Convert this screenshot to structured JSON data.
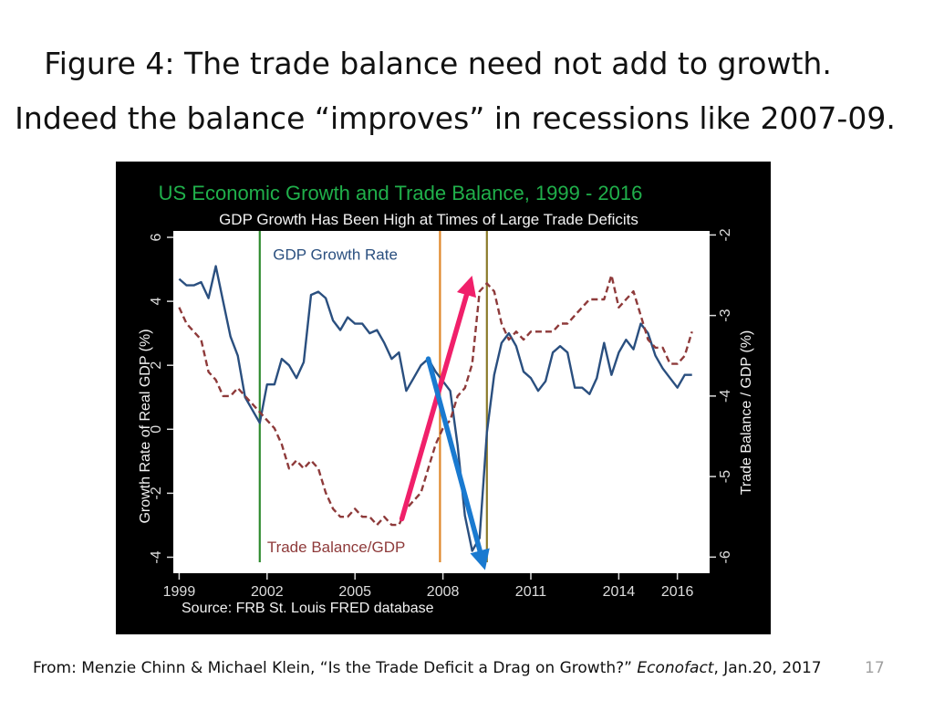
{
  "slide": {
    "title_line1": "Figure 4: The trade balance need not add to growth.",
    "title_line2": "Indeed the balance “improves” in recessions like 2007-09.",
    "citation_prefix": "From: Menzie Chinn & Michael Klein, “Is the Trade Deficit a Drag on Growth?” ",
    "citation_journal": "Econofact",
    "citation_suffix": ", Jan.20, 2017",
    "slide_number": "17"
  },
  "chart_data": {
    "type": "line",
    "title": "US Economic Growth and Trade Balance, 1999 - 2016",
    "subtitle": "GDP Growth Has Been High at Times of Large Trade Deficits",
    "source": "Source: FRB St. Louis FRED database",
    "xlabel": "",
    "ylabel_left": "Growth Rate of Real GDP (%)",
    "ylabel_right": "Trade Balance / GDP (%)",
    "x_ticks": [
      "1999",
      "2002",
      "2005",
      "2008",
      "2011",
      "2014",
      "2016"
    ],
    "y_left_ticks": [
      "-4",
      "-2",
      "0",
      "2",
      "4",
      "6"
    ],
    "y_right_ticks": [
      "-6",
      "-5",
      "-4",
      "-3",
      "-2"
    ],
    "xlim": [
      1998.8,
      2017.1
    ],
    "ylim_left": [
      -4.5,
      6.2
    ],
    "ylim_right": [
      -6.2,
      -1.95
    ],
    "colors": {
      "title": "#20b04b",
      "gdp": "#2a4f7f",
      "trade": "#8e3a3a",
      "recession_line_2001": "#2e8b2e",
      "recession_line_2008": "#e0882a",
      "recession_line_2009": "#8a7a2a",
      "arrow_up": "#f0206a",
      "arrow_down": "#1a7ad0",
      "plot_bg": "#ffffff",
      "frame_bg": "#000000",
      "axis_text": "#dddddd"
    },
    "series": [
      {
        "name": "GDP Growth Rate",
        "axis": "left",
        "style": "solid",
        "x": [
          1999.0,
          1999.25,
          1999.5,
          1999.75,
          2000.0,
          2000.25,
          2000.5,
          2000.75,
          2001.0,
          2001.25,
          2001.5,
          2001.75,
          2002.0,
          2002.25,
          2002.5,
          2002.75,
          2003.0,
          2003.25,
          2003.5,
          2003.75,
          2004.0,
          2004.25,
          2004.5,
          2004.75,
          2005.0,
          2005.25,
          2005.5,
          2005.75,
          2006.0,
          2006.25,
          2006.5,
          2006.75,
          2007.0,
          2007.25,
          2007.5,
          2007.75,
          2008.0,
          2008.25,
          2008.5,
          2008.75,
          2009.0,
          2009.25,
          2009.5,
          2009.75,
          2010.0,
          2010.25,
          2010.5,
          2010.75,
          2011.0,
          2011.25,
          2011.5,
          2011.75,
          2012.0,
          2012.25,
          2012.5,
          2012.75,
          2013.0,
          2013.25,
          2013.5,
          2013.75,
          2014.0,
          2014.25,
          2014.5,
          2014.75,
          2015.0,
          2015.25,
          2015.5,
          2015.75,
          2016.0,
          2016.25,
          2016.5
        ],
        "values": [
          4.7,
          4.5,
          4.5,
          4.6,
          4.1,
          5.1,
          4.0,
          2.9,
          2.3,
          1.0,
          0.6,
          0.2,
          1.4,
          1.4,
          2.2,
          2.0,
          1.6,
          2.1,
          4.2,
          4.3,
          4.1,
          3.4,
          3.1,
          3.5,
          3.3,
          3.3,
          3.0,
          3.1,
          2.7,
          2.2,
          2.4,
          1.2,
          1.6,
          2.0,
          2.2,
          1.8,
          1.5,
          1.2,
          -0.5,
          -2.7,
          -3.8,
          -3.4,
          -0.1,
          1.7,
          2.7,
          3.0,
          2.6,
          1.8,
          1.6,
          1.2,
          1.5,
          2.4,
          2.6,
          2.4,
          1.3,
          1.3,
          1.1,
          1.6,
          2.7,
          1.7,
          2.4,
          2.8,
          2.5,
          3.3,
          3.0,
          2.3,
          1.9,
          1.6,
          1.3,
          1.7,
          1.7
        ]
      },
      {
        "name": "Trade Balance/GDP",
        "axis": "right",
        "style": "dashed",
        "x": [
          1999.0,
          1999.25,
          1999.5,
          1999.75,
          2000.0,
          2000.25,
          2000.5,
          2000.75,
          2001.0,
          2001.25,
          2001.5,
          2001.75,
          2002.0,
          2002.25,
          2002.5,
          2002.75,
          2003.0,
          2003.25,
          2003.5,
          2003.75,
          2004.0,
          2004.25,
          2004.5,
          2004.75,
          2005.0,
          2005.25,
          2005.5,
          2005.75,
          2006.0,
          2006.25,
          2006.5,
          2006.75,
          2007.0,
          2007.25,
          2007.5,
          2007.75,
          2008.0,
          2008.25,
          2008.5,
          2008.75,
          2009.0,
          2009.25,
          2009.5,
          2009.75,
          2010.0,
          2010.25,
          2010.5,
          2010.75,
          2011.0,
          2011.25,
          2011.5,
          2011.75,
          2012.0,
          2012.25,
          2012.5,
          2012.75,
          2013.0,
          2013.25,
          2013.5,
          2013.75,
          2014.0,
          2014.25,
          2014.5,
          2014.75,
          2015.0,
          2015.25,
          2015.5,
          2015.75,
          2016.0,
          2016.25,
          2016.5
        ],
        "values": [
          -2.9,
          -3.1,
          -3.2,
          -3.3,
          -3.7,
          -3.8,
          -4.0,
          -4.0,
          -3.9,
          -4.0,
          -4.1,
          -4.2,
          -4.3,
          -4.4,
          -4.6,
          -4.9,
          -4.8,
          -4.9,
          -4.8,
          -4.9,
          -5.2,
          -5.4,
          -5.5,
          -5.5,
          -5.4,
          -5.5,
          -5.5,
          -5.6,
          -5.5,
          -5.6,
          -5.6,
          -5.4,
          -5.3,
          -5.2,
          -4.9,
          -4.6,
          -4.4,
          -4.3,
          -4.0,
          -3.9,
          -3.6,
          -2.7,
          -2.6,
          -2.7,
          -3.1,
          -3.3,
          -3.2,
          -3.3,
          -3.2,
          -3.2,
          -3.2,
          -3.2,
          -3.1,
          -3.1,
          -3.0,
          -2.9,
          -2.8,
          -2.8,
          -2.8,
          -2.5,
          -2.9,
          -2.8,
          -2.7,
          -3.0,
          -3.3,
          -3.4,
          -3.4,
          -3.6,
          -3.6,
          -3.5,
          -3.2
        ]
      }
    ],
    "annotations": [
      {
        "text": "GDP Growth Rate",
        "x": 2002.2,
        "y_left": 5.3,
        "color": "gdp"
      },
      {
        "text": "Trade Balance/GDP",
        "x": 2002.0,
        "y_left": -3.85,
        "color": "trade"
      }
    ],
    "vertical_lines": [
      {
        "x": 2001.75,
        "color": "recession_line_2001"
      },
      {
        "x": 2007.9,
        "color": "recession_line_2008"
      },
      {
        "x": 2009.5,
        "color": "recession_line_2009"
      }
    ],
    "arrows": [
      {
        "from": [
          2006.6,
          -2.8
        ],
        "to": [
          2008.9,
          4.5
        ],
        "color": "arrow_up"
      },
      {
        "from": [
          2007.5,
          2.2
        ],
        "to": [
          2009.35,
          -4.1
        ],
        "color": "arrow_down"
      }
    ]
  }
}
